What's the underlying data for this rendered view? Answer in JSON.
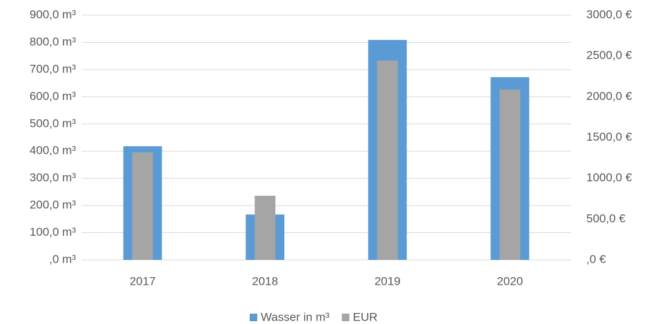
{
  "chart_data": {
    "type": "bar",
    "categories": [
      "2017",
      "2018",
      "2019",
      "2020"
    ],
    "series": [
      {
        "name": "Wasser in m³",
        "color": "#5b9bd5",
        "values": [
          418,
          167,
          809,
          672
        ]
      },
      {
        "name": "EUR",
        "color": "#a5a5a5",
        "axis": "y2",
        "values": [
          1319,
          786,
          2443,
          2088
        ]
      }
    ],
    "ylim": [
      0,
      900
    ],
    "yticks": [
      {
        "value": 0,
        "label": ",0 m³"
      },
      {
        "value": 100,
        "label": "100,0 m³"
      },
      {
        "value": 200,
        "label": "200,0 m³"
      },
      {
        "value": 300,
        "label": "300,0 m³"
      },
      {
        "value": 400,
        "label": "400,0 m³"
      },
      {
        "value": 500,
        "label": "500,0 m³"
      },
      {
        "value": 600,
        "label": "600,0 m³"
      },
      {
        "value": 700,
        "label": "700,0 m³"
      },
      {
        "value": 800,
        "label": "800,0 m³"
      },
      {
        "value": 900,
        "label": "900,0 m³"
      }
    ],
    "y2lim": [
      0,
      3000
    ],
    "y2ticks": [
      {
        "value": 0,
        "label": ",0 €"
      },
      {
        "value": 500,
        "label": "500,0 €"
      },
      {
        "value": 1000,
        "label": "1000,0 €"
      },
      {
        "value": 1500,
        "label": "1500,0 €"
      },
      {
        "value": 2000,
        "label": "2000,0 €"
      },
      {
        "value": 2500,
        "label": "2500,0 €"
      },
      {
        "value": 3000,
        "label": "3000,0 €"
      }
    ],
    "grid": true,
    "legend": "bottom"
  }
}
